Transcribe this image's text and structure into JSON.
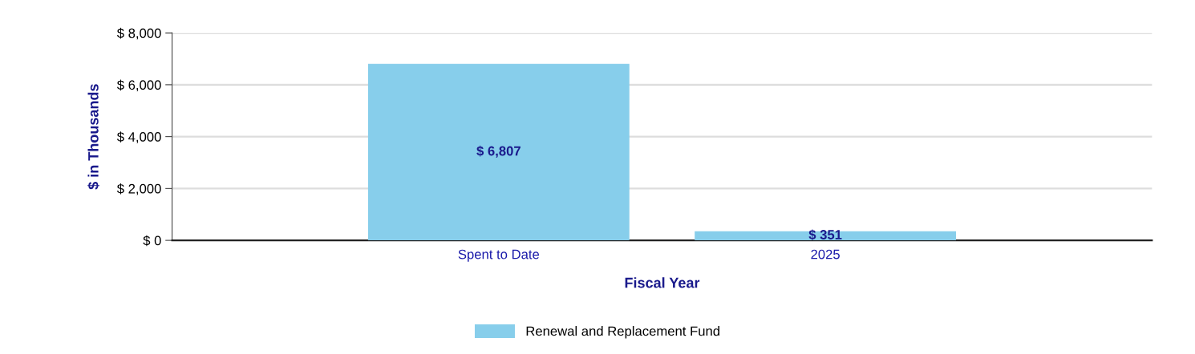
{
  "chart_data": {
    "type": "bar",
    "xlabel": "Fiscal Year",
    "ylabel": "$ in Thousands",
    "categories": [
      "Spent to Date",
      "2025"
    ],
    "series": [
      {
        "name": "Renewal and Replacement Fund",
        "color": "#87ceeb",
        "values": [
          6807,
          351
        ],
        "value_labels": [
          "$ 6,807",
          "$ 351"
        ]
      }
    ],
    "ylim": [
      0,
      8000
    ],
    "yticks": [
      {
        "value": 0,
        "label": "$ 0"
      },
      {
        "value": 2000,
        "label": "$ 2,000"
      },
      {
        "value": 4000,
        "label": "$ 4,000"
      },
      {
        "value": 6000,
        "label": "$ 6,000"
      },
      {
        "value": 8000,
        "label": "$ 8,000"
      }
    ],
    "grid": "y",
    "legend": "bottom"
  }
}
